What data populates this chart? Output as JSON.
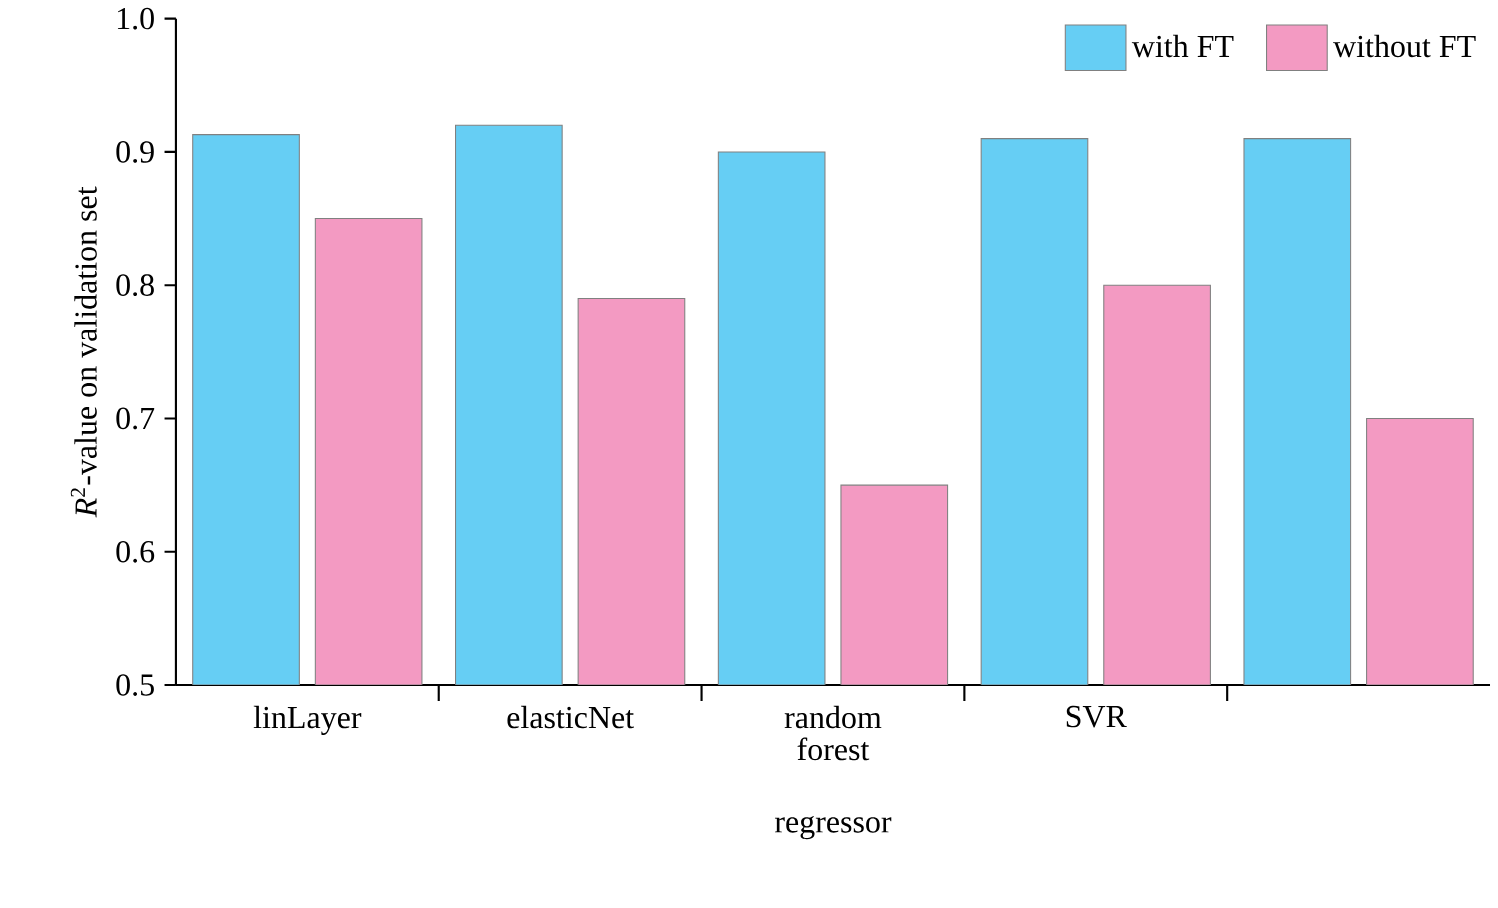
{
  "chart_data": {
    "type": "bar",
    "xlabel": "regressor",
    "ylabel": "*R*$^{2}$-value on validation set",
    "categories": [
      "linLayer",
      "elasticNet",
      "random forest",
      "SVR",
      null
    ],
    "series": [
      {
        "name": "with FT",
        "color": "#66cef4",
        "values": [
          0.913,
          0.92,
          0.9,
          0.91,
          0.91
        ]
      },
      {
        "name": "without FT",
        "color": "#f39ac2",
        "values": [
          0.85,
          0.79,
          0.65,
          0.8,
          0.7
        ]
      }
    ],
    "ylim": [
      0.5,
      1.0
    ],
    "yticks": [
      0.5,
      0.6,
      0.7,
      0.8,
      0.9,
      {
        "value": 1.0,
        "label": "1.0"
      }
    ],
    "grid": false,
    "legend": "top right"
  }
}
